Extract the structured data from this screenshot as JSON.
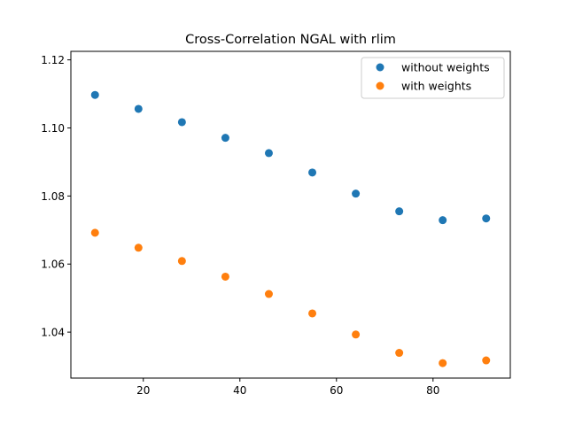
{
  "chart_data": {
    "type": "scatter",
    "title": "Cross-Correlation NGAL with rlim",
    "xlabel": "",
    "ylabel": "",
    "xlim": [
      5,
      96
    ],
    "ylim": [
      1.0265,
      1.1225
    ],
    "x_ticks": [
      20,
      40,
      60,
      80
    ],
    "y_ticks": [
      1.04,
      1.06,
      1.08,
      1.1,
      1.12
    ],
    "x_tick_labels": [
      "20",
      "40",
      "60",
      "80"
    ],
    "y_tick_labels": [
      "1.04",
      "1.06",
      "1.08",
      "1.10",
      "1.12"
    ],
    "grid": false,
    "legend_position": "top-right",
    "x": [
      10,
      19,
      28,
      37,
      46,
      55,
      64,
      73,
      82,
      91
    ],
    "series": [
      {
        "name": "without weights",
        "color": "#1f77b4",
        "values": [
          1.1097,
          1.1056,
          1.1017,
          1.0971,
          1.0926,
          1.0869,
          1.0807,
          1.0755,
          1.0729,
          1.0734
        ]
      },
      {
        "name": "with weights",
        "color": "#ff7f0e",
        "values": [
          1.0692,
          1.0648,
          1.0609,
          1.0563,
          1.0512,
          1.0455,
          1.0393,
          1.0339,
          1.0309,
          1.0317
        ]
      }
    ]
  }
}
